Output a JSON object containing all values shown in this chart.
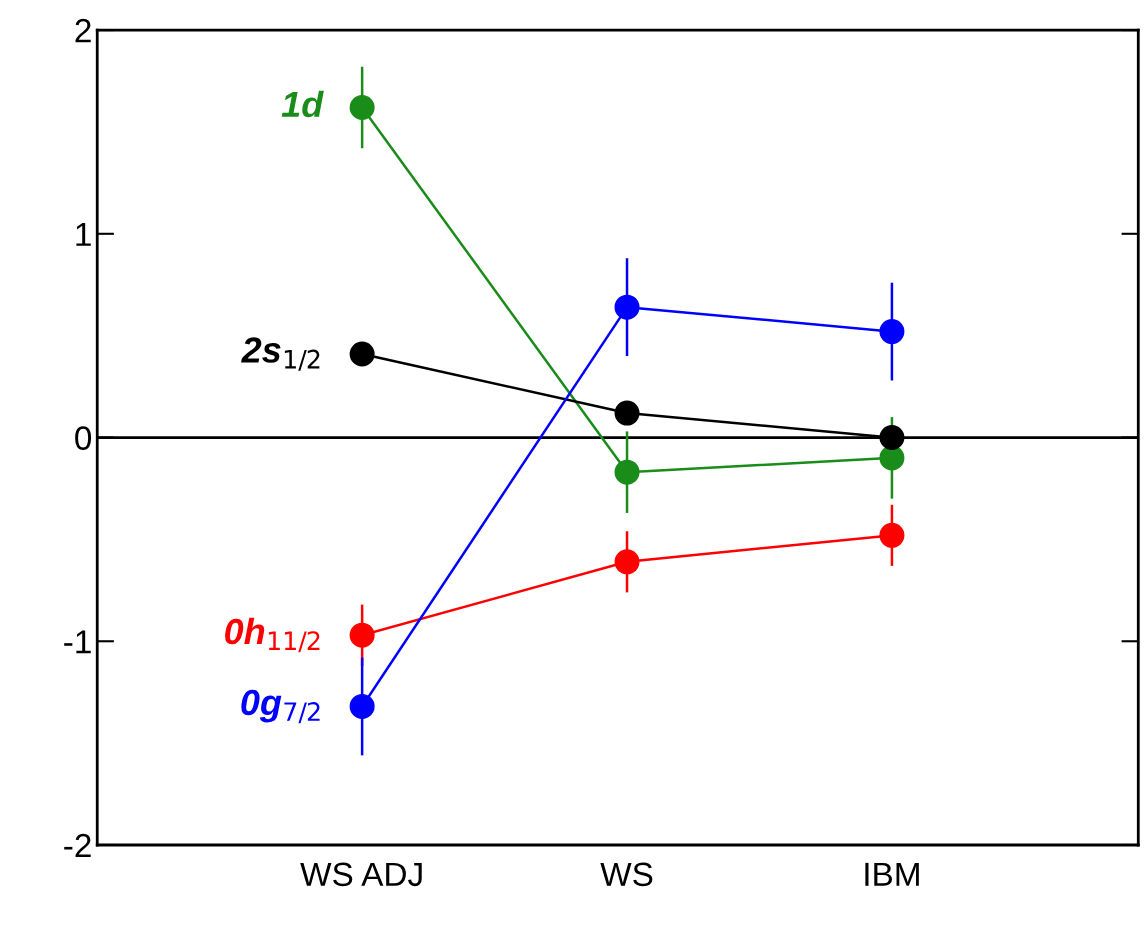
{
  "chart_data": {
    "type": "line",
    "categories": [
      "WS ADJ",
      "WS",
      "IBM"
    ],
    "series": [
      {
        "name": "1d",
        "color": "#1a8c1a",
        "values": [
          1.62,
          -0.17,
          -0.1
        ],
        "errors": [
          0.2,
          0.2,
          0.2
        ]
      },
      {
        "name": "2s$_{1/2}$",
        "color": "#000000",
        "values": [
          0.41,
          0.12,
          0.0
        ]
      },
      {
        "name": "0h$_{11/2}$",
        "color": "#ff0000",
        "values": [
          -0.97,
          -0.61,
          -0.48
        ],
        "errors": [
          0.15,
          0.15,
          0.15
        ]
      },
      {
        "name": "0g$_{7/2}$",
        "color": "#0000ff",
        "values": [
          -1.32,
          0.64,
          0.52
        ],
        "errors": [
          0.24,
          0.24,
          0.24
        ]
      }
    ],
    "ylim": [
      -2,
      2
    ],
    "yticks": [
      -2,
      -1,
      0,
      1,
      2
    ],
    "ref_lines": [
      {
        "axis": "y",
        "value": 0,
        "color": "#000000"
      }
    ],
    "marker": "circle",
    "line_style": "solid",
    "grid": false,
    "legend": false
  }
}
